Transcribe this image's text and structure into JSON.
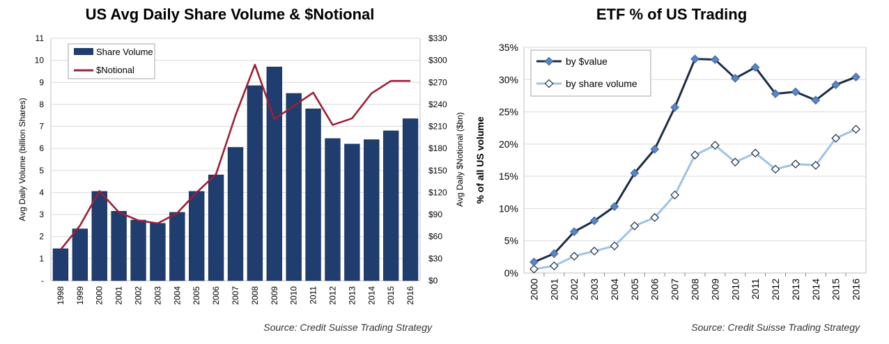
{
  "chart_data": [
    {
      "type": "bar",
      "title": "US Avg Daily Share Volume & $Notional",
      "ylabel": "Avg Daily Volume (billion Shares)",
      "y2label": "Avg Daily $Notional ($bn)",
      "ylim": [
        0,
        11
      ],
      "y2lim": [
        0,
        330
      ],
      "yticks": [
        "-",
        "1",
        "2",
        "3",
        "4",
        "5",
        "6",
        "7",
        "8",
        "9",
        "10",
        "11"
      ],
      "y2ticks": [
        "$0",
        "$30",
        "$60",
        "$90",
        "$120",
        "$150",
        "$180",
        "$210",
        "$240",
        "$270",
        "$300",
        "$330"
      ],
      "categories": [
        "1998",
        "1999",
        "2000",
        "2001",
        "2002",
        "2003",
        "2004",
        "2005",
        "2006",
        "2007",
        "2008",
        "2009",
        "2010",
        "2011",
        "2012",
        "2013",
        "2014",
        "2015",
        "2016"
      ],
      "series": [
        {
          "name": "Share Volume",
          "type": "bar",
          "axis": "left",
          "values": [
            1.45,
            2.35,
            4.05,
            3.15,
            2.75,
            2.6,
            3.1,
            4.05,
            4.8,
            6.05,
            8.85,
            9.7,
            8.5,
            7.8,
            6.45,
            6.2,
            6.4,
            6.8,
            7.35
          ]
        },
        {
          "name": "$Notional",
          "type": "line",
          "axis": "right",
          "values": [
            42,
            75,
            122,
            93,
            82,
            78,
            92,
            120,
            145,
            225,
            294,
            220,
            238,
            256,
            212,
            221,
            255,
            272,
            272
          ]
        }
      ],
      "legend": "top-left",
      "colors": {
        "bar": "#1f3d6e",
        "line": "#9c1f36",
        "grid": "#d9d9d9"
      },
      "grid": true,
      "source": "Source: Credit Suisse Trading Strategy"
    },
    {
      "type": "line",
      "title": "ETF % of US Trading",
      "ylabel": "% of all US volume",
      "ylim": [
        0,
        35
      ],
      "yticks": [
        "0%",
        "5%",
        "10%",
        "15%",
        "20%",
        "25%",
        "30%",
        "35%"
      ],
      "categories": [
        "2000",
        "2001",
        "2002",
        "2003",
        "2004",
        "2005",
        "2006",
        "2007",
        "2008",
        "2009",
        "2010",
        "2011",
        "2012",
        "2013",
        "2014",
        "2015",
        "2016"
      ],
      "series": [
        {
          "name": "by $value",
          "values": [
            1.7,
            3.0,
            6.4,
            8.1,
            10.3,
            15.5,
            19.2,
            25.7,
            33.2,
            33.1,
            30.2,
            31.9,
            27.8,
            28.1,
            26.8,
            29.2,
            30.4
          ]
        },
        {
          "name": "by share volume",
          "values": [
            0.6,
            1.1,
            2.6,
            3.4,
            4.2,
            7.3,
            8.6,
            12.1,
            18.3,
            19.8,
            17.2,
            18.6,
            16.1,
            16.9,
            16.7,
            20.9,
            22.3
          ]
        }
      ],
      "legend": "top-left",
      "colors": {
        "value_line": "#1c2c46",
        "value_marker": "#5b86c5",
        "volume_line": "#9cc3e6",
        "volume_marker": "#ffffff",
        "grid": "#d9d9d9"
      },
      "grid": true,
      "source": "Source: Credit Suisse Trading Strategy"
    }
  ]
}
